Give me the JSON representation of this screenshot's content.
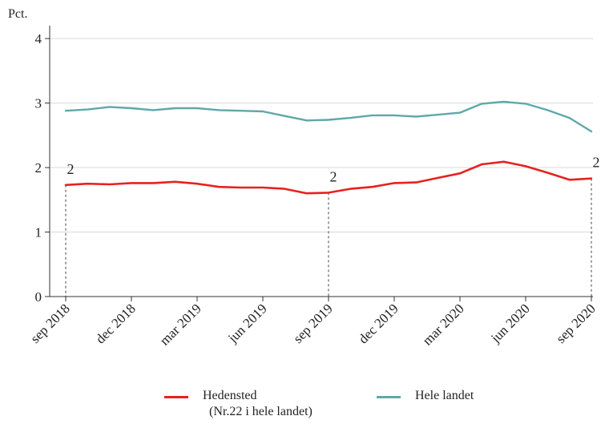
{
  "chart_data": {
    "type": "line",
    "ylabel": "Pct.",
    "ylim": [
      0,
      4.2
    ],
    "yticks": [
      0,
      1,
      2,
      3,
      4
    ],
    "grid": "horizontal",
    "x": [
      "2018-09",
      "2018-10",
      "2018-11",
      "2018-12",
      "2019-01",
      "2019-02",
      "2019-03",
      "2019-04",
      "2019-05",
      "2019-06",
      "2019-07",
      "2019-08",
      "2019-09",
      "2019-10",
      "2019-11",
      "2019-12",
      "2020-01",
      "2020-02",
      "2020-03",
      "2020-04",
      "2020-05",
      "2020-06",
      "2020-07",
      "2020-08",
      "2020-09"
    ],
    "xticks": [
      {
        "index": 0,
        "label": "sep 2018"
      },
      {
        "index": 3,
        "label": "dec 2018"
      },
      {
        "index": 6,
        "label": "mar 2019"
      },
      {
        "index": 9,
        "label": "jun 2019"
      },
      {
        "index": 12,
        "label": "sep 2019"
      },
      {
        "index": 15,
        "label": "dec 2019"
      },
      {
        "index": 18,
        "label": "mar 2020"
      },
      {
        "index": 21,
        "label": "jun 2020"
      },
      {
        "index": 24,
        "label": "sep 2020"
      }
    ],
    "series": [
      {
        "name": "Hedensted",
        "name_note": "(Nr.22 i hele landet)",
        "color": "#e8211f",
        "values": [
          1.73,
          1.75,
          1.74,
          1.76,
          1.76,
          1.78,
          1.75,
          1.7,
          1.69,
          1.69,
          1.67,
          1.6,
          1.61,
          1.67,
          1.7,
          1.76,
          1.77,
          1.84,
          1.91,
          2.05,
          2.09,
          2.02,
          1.92,
          1.81,
          1.83
        ]
      },
      {
        "name": "Hele landet",
        "color": "#5fa8a8",
        "values": [
          2.88,
          2.9,
          2.94,
          2.92,
          2.89,
          2.92,
          2.92,
          2.89,
          2.88,
          2.87,
          2.8,
          2.73,
          2.74,
          2.77,
          2.81,
          2.81,
          2.79,
          2.82,
          2.85,
          2.99,
          3.02,
          2.99,
          2.89,
          2.77,
          2.56
        ]
      }
    ],
    "annotations": [
      {
        "index": 0,
        "text": "2"
      },
      {
        "index": 12,
        "text": "2"
      },
      {
        "index": 24,
        "text": "2"
      }
    ],
    "legend_position": "bottom"
  }
}
